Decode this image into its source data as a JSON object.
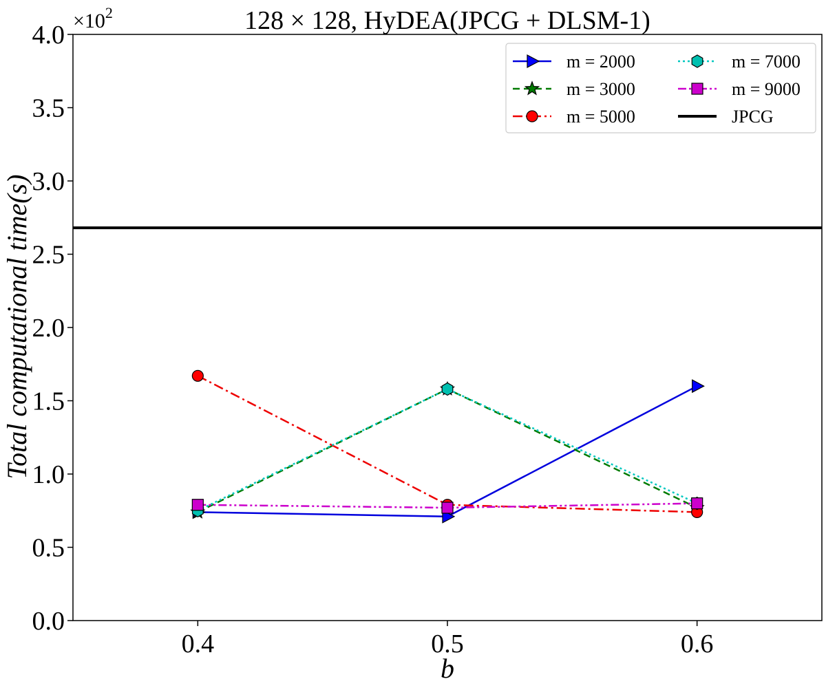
{
  "chart_data": {
    "type": "line",
    "title": "128 × 128, HyDEA(JPCG + DLSM-1)",
    "xlabel": "b",
    "ylabel": "Total computational time(s)",
    "offset_label": {
      "base": "×10",
      "exponent": "2"
    },
    "xlim": [
      0.35,
      0.65
    ],
    "ylim": [
      0.0,
      4.0
    ],
    "xticks": [
      0.4,
      0.5,
      0.6
    ],
    "xtick_labels": [
      "0.4",
      "0.5",
      "0.6"
    ],
    "yticks": [
      0.0,
      0.5,
      1.0,
      1.5,
      2.0,
      2.5,
      3.0,
      3.5,
      4.0
    ],
    "ytick_labels": [
      "0.0",
      "0.5",
      "1.0",
      "1.5",
      "2.0",
      "2.5",
      "3.0",
      "3.5",
      "4.0"
    ],
    "legend_position": "top-right",
    "legend_columns": 2,
    "x": [
      0.4,
      0.5,
      0.6
    ],
    "series": [
      {
        "name": "m = 2000",
        "values": [
          0.74,
          0.71,
          1.6
        ],
        "color": "#0000dd",
        "dash": "",
        "marker": "triangle-right",
        "markerFill": "#0000ff"
      },
      {
        "name": "m = 3000",
        "values": [
          0.74,
          1.58,
          0.77
        ],
        "color": "#007a00",
        "dash": "10,6",
        "marker": "star",
        "markerFill": "#007a00"
      },
      {
        "name": "m = 5000",
        "values": [
          1.67,
          0.79,
          0.74
        ],
        "color": "#ee0000",
        "dash": "14,5,3,5",
        "marker": "circle",
        "markerFill": "#ff0000"
      },
      {
        "name": "m = 7000",
        "values": [
          0.75,
          1.58,
          0.8
        ],
        "color": "#00c8c0",
        "dash": "3,4",
        "marker": "hexagon",
        "markerFill": "#00c0b0"
      },
      {
        "name": "m = 9000",
        "values": [
          0.79,
          0.77,
          0.8
        ],
        "color": "#cc00cc",
        "dash": "12,4,3,4,3,4",
        "marker": "square",
        "markerFill": "#cc00cc"
      }
    ],
    "reference_lines": [
      {
        "name": "JPCG",
        "value": 2.68,
        "color": "#000000"
      }
    ]
  }
}
